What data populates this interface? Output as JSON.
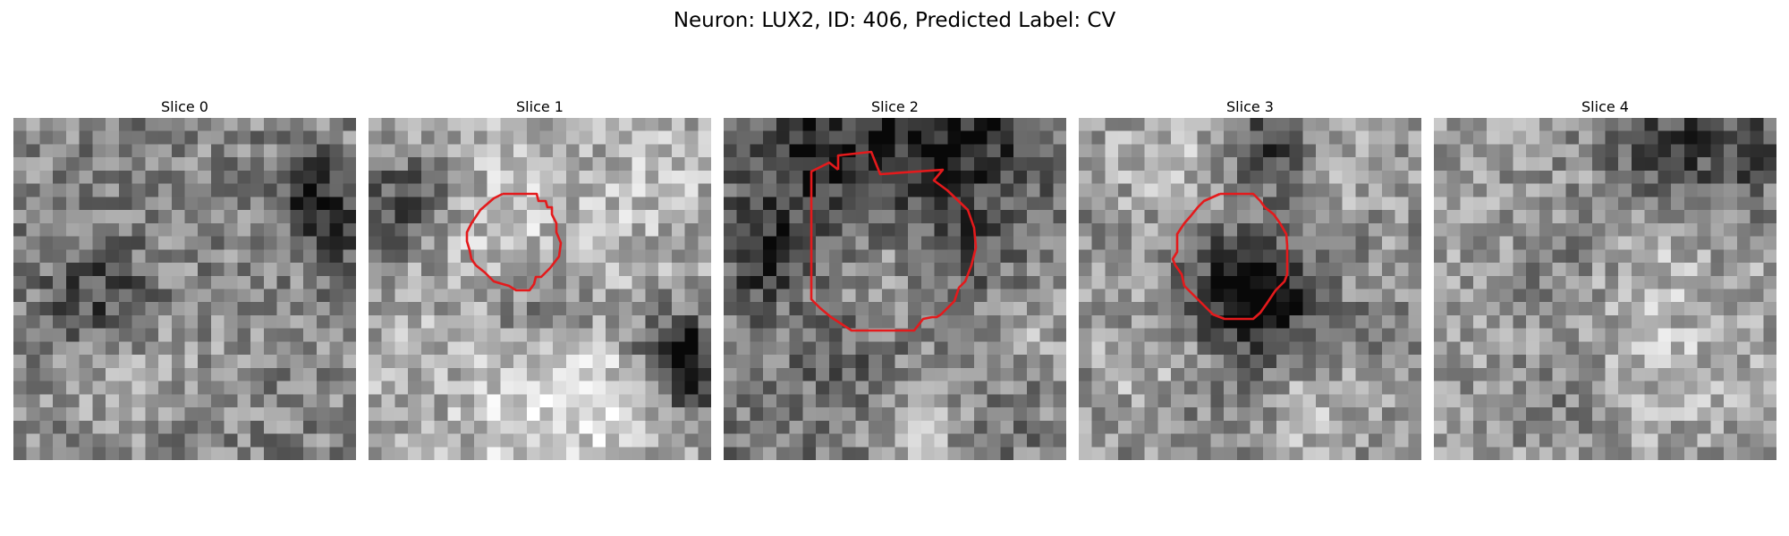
{
  "figure": {
    "title": "Neuron: LUX2, ID: 406, Predicted Label: CV"
  },
  "contour_color": "#e41a1c",
  "colormap": "gray",
  "panels": [
    {
      "title": "Slice 0",
      "has_contour": false,
      "mean_intensity": 0.52
    },
    {
      "title": "Slice 1",
      "has_contour": true,
      "mean_intensity": 0.66
    },
    {
      "title": "Slice 2",
      "has_contour": true,
      "mean_intensity": 0.48
    },
    {
      "title": "Slice 3",
      "has_contour": true,
      "mean_intensity": 0.55
    },
    {
      "title": "Slice 4",
      "has_contour": false,
      "mean_intensity": 0.62
    }
  ]
}
